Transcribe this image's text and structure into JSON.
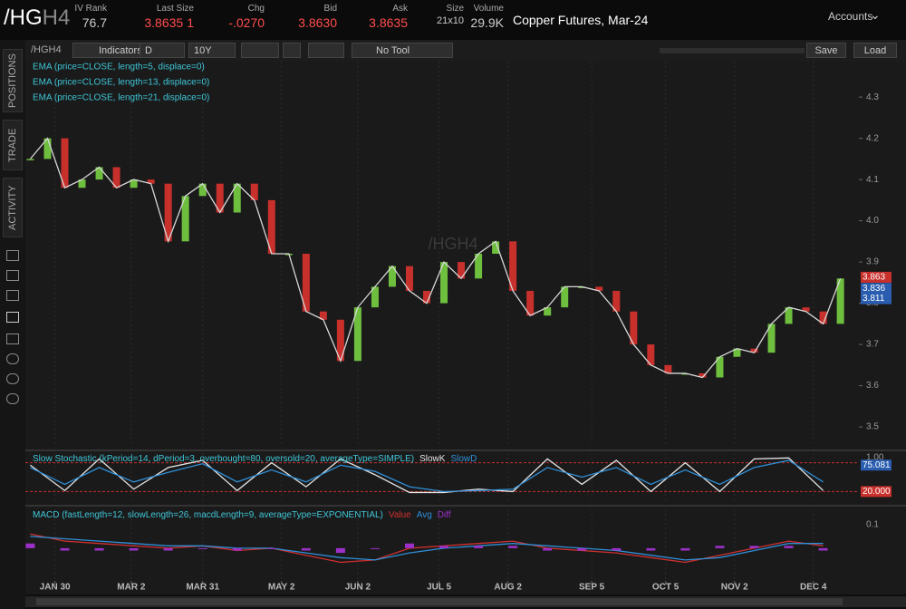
{
  "header": {
    "symbol": "/HG",
    "symbol_suffix": "H4",
    "quotes": [
      {
        "label": "IV Rank",
        "value": "76.7"
      },
      {
        "label": "Last Size",
        "value": "3.8635",
        "extra": "1"
      },
      {
        "label": "Chg",
        "value": "-.0270"
      },
      {
        "label": "Bid",
        "value": "3.8630"
      },
      {
        "label": "Ask",
        "value": "3.8635"
      },
      {
        "label": "Size",
        "value": "21x10"
      },
      {
        "label": "Volume",
        "value": "29.9K"
      }
    ],
    "description": "Copper Futures, Mar-24",
    "accounts": "Accounts"
  },
  "toolbar": {
    "symbol": "/HGH4",
    "indicators": "Indicators",
    "aggregation": "D",
    "range": "10Y",
    "tool": "No Tool",
    "save": "Save",
    "load": "Load"
  },
  "side_tabs": [
    "POSITIONS",
    "TRADE",
    "ACTIVITY"
  ],
  "chart_data": [
    {
      "type": "candlestick",
      "watermark": "/HGH4",
      "studies": [
        "EMA (price=CLOSE, length=5, displace=0)",
        "EMA (price=CLOSE, length=13, displace=0)",
        "EMA (price=CLOSE, length=21, displace=0)"
      ],
      "x": [
        20,
        27,
        34,
        41,
        48,
        55,
        62,
        69,
        76,
        83,
        90,
        97,
        104,
        111,
        118,
        125,
        132,
        139,
        146,
        153,
        160,
        167,
        174,
        181,
        188,
        195,
        202,
        209,
        216,
        223,
        230,
        237,
        244,
        251,
        258,
        265,
        272,
        279,
        286,
        293,
        300,
        307,
        314,
        321,
        328,
        335,
        342,
        349
      ],
      "values": [
        4.15,
        4.2,
        4.08,
        4.1,
        4.13,
        4.08,
        4.1,
        4.09,
        3.95,
        4.06,
        4.09,
        4.02,
        4.09,
        4.05,
        3.92,
        3.92,
        3.78,
        3.76,
        3.66,
        3.79,
        3.84,
        3.89,
        3.83,
        3.8,
        3.9,
        3.86,
        3.92,
        3.95,
        3.83,
        3.77,
        3.79,
        3.84,
        3.84,
        3.83,
        3.78,
        3.7,
        3.65,
        3.63,
        3.63,
        3.62,
        3.67,
        3.69,
        3.68,
        3.75,
        3.79,
        3.78,
        3.75,
        3.86
      ],
      "up_color": "#6fbf3f",
      "down_color": "#c8302c",
      "line_color": "#d8d8d8",
      "xlim": [
        18,
        356.5
      ],
      "xticks": [
        {
          "value": 30,
          "label": "JAN 30"
        },
        {
          "value": 61,
          "label": "MAR 2"
        },
        {
          "value": 90,
          "label": "MAR 31"
        },
        {
          "value": 122,
          "label": "MAY 2"
        },
        {
          "value": 153,
          "label": "JUN 2"
        },
        {
          "value": 186,
          "label": "JUL 5"
        },
        {
          "value": 214,
          "label": "AUG 2"
        },
        {
          "value": 248,
          "label": "SEP 5"
        },
        {
          "value": 278,
          "label": "OCT 5"
        },
        {
          "value": 306,
          "label": "NOV 2"
        },
        {
          "value": 338,
          "label": "DEC 4"
        }
      ],
      "ylim": [
        3.454,
        4.386
      ],
      "yticks": [
        4.3,
        4.2,
        4.1,
        {
          "value": 4,
          "label": "4.0"
        },
        3.9,
        3.8,
        3.7,
        3.6,
        3.5
      ],
      "price_tags": [
        {
          "value": 3.863,
          "label": "3.863",
          "color": "#c8302c"
        },
        {
          "value": 3.836,
          "label": "3.836",
          "color": "#2a5db0"
        },
        {
          "value": 3.811,
          "label": "3.811",
          "color": "#2a5db0"
        }
      ]
    },
    {
      "type": "line",
      "title": "Slow Stochastic (kPeriod=14, dPeriod=3, overbought=80, oversold=20, averageType=SIMPLE)",
      "axis_label": "1.00",
      "x": [
        20,
        34,
        48,
        62,
        76,
        90,
        104,
        118,
        132,
        146,
        160,
        174,
        188,
        202,
        216,
        230,
        244,
        258,
        272,
        286,
        300,
        314,
        328,
        342
      ],
      "series": [
        {
          "name": "SlowK",
          "color": "#e6e6e6",
          "values": [
            75,
            22,
            88,
            25,
            70,
            85,
            22,
            80,
            30,
            88,
            55,
            18,
            18,
            25,
            20,
            88,
            35,
            85,
            20,
            80,
            20,
            88,
            90,
            22
          ]
        },
        {
          "name": "SlowD",
          "color": "#2f8fd8",
          "values": [
            70,
            35,
            70,
            40,
            60,
            78,
            40,
            65,
            40,
            75,
            62,
            30,
            20,
            22,
            25,
            70,
            50,
            70,
            35,
            65,
            35,
            70,
            85,
            40
          ]
        }
      ],
      "levels": [
        80,
        20
      ],
      "xlim": [
        18,
        356.5
      ],
      "ylim": [
        0,
        100
      ],
      "tags": [
        {
          "value": 75.081,
          "label": "75.081",
          "color": "#2a5db0"
        },
        {
          "value": 20,
          "label": "20.000",
          "color": "#c8302c"
        }
      ]
    },
    {
      "type": "macd",
      "title": "MACD (fastLength=12, slowLength=26, macdLength=9, averageType=EXPONENTIAL)",
      "x": [
        20,
        34,
        48,
        62,
        76,
        90,
        104,
        118,
        132,
        146,
        160,
        174,
        188,
        202,
        216,
        230,
        244,
        258,
        272,
        286,
        300,
        314,
        328,
        342
      ],
      "series": [
        {
          "name": "Value",
          "color": "#d0302f",
          "values": [
            0.06,
            0.03,
            0.02,
            0.01,
            0,
            0.01,
            -0.01,
            0,
            -0.03,
            -0.06,
            -0.05,
            0,
            0.01,
            0.02,
            0.03,
            0,
            -0.01,
            -0.02,
            -0.04,
            -0.06,
            -0.03,
            0,
            0.03,
            0.01
          ]
        },
        {
          "name": "Avg",
          "color": "#2f8fd8",
          "values": [
            0.05,
            0.04,
            0.03,
            0.02,
            0.01,
            0.01,
            0,
            0,
            -0.02,
            -0.04,
            -0.05,
            -0.02,
            0,
            0.01,
            0.02,
            0.01,
            0,
            -0.01,
            -0.03,
            -0.05,
            -0.04,
            -0.01,
            0.02,
            0.02
          ]
        },
        {
          "name": "Diff",
          "color": "#9b30c8",
          "values": [
            0.02,
            -0.01,
            -0.01,
            -0.01,
            -0.01,
            0,
            -0.01,
            0,
            -0.01,
            -0.02,
            0,
            0.02,
            0.01,
            0.01,
            0.01,
            -0.01,
            -0.01,
            -0.01,
            -0.01,
            -0.01,
            0.01,
            0.01,
            0.01,
            -0.01
          ]
        }
      ],
      "xlim": [
        18,
        356.5
      ],
      "ylim": [
        -0.135,
        0.165
      ],
      "yticks": [
        0.1
      ]
    }
  ]
}
